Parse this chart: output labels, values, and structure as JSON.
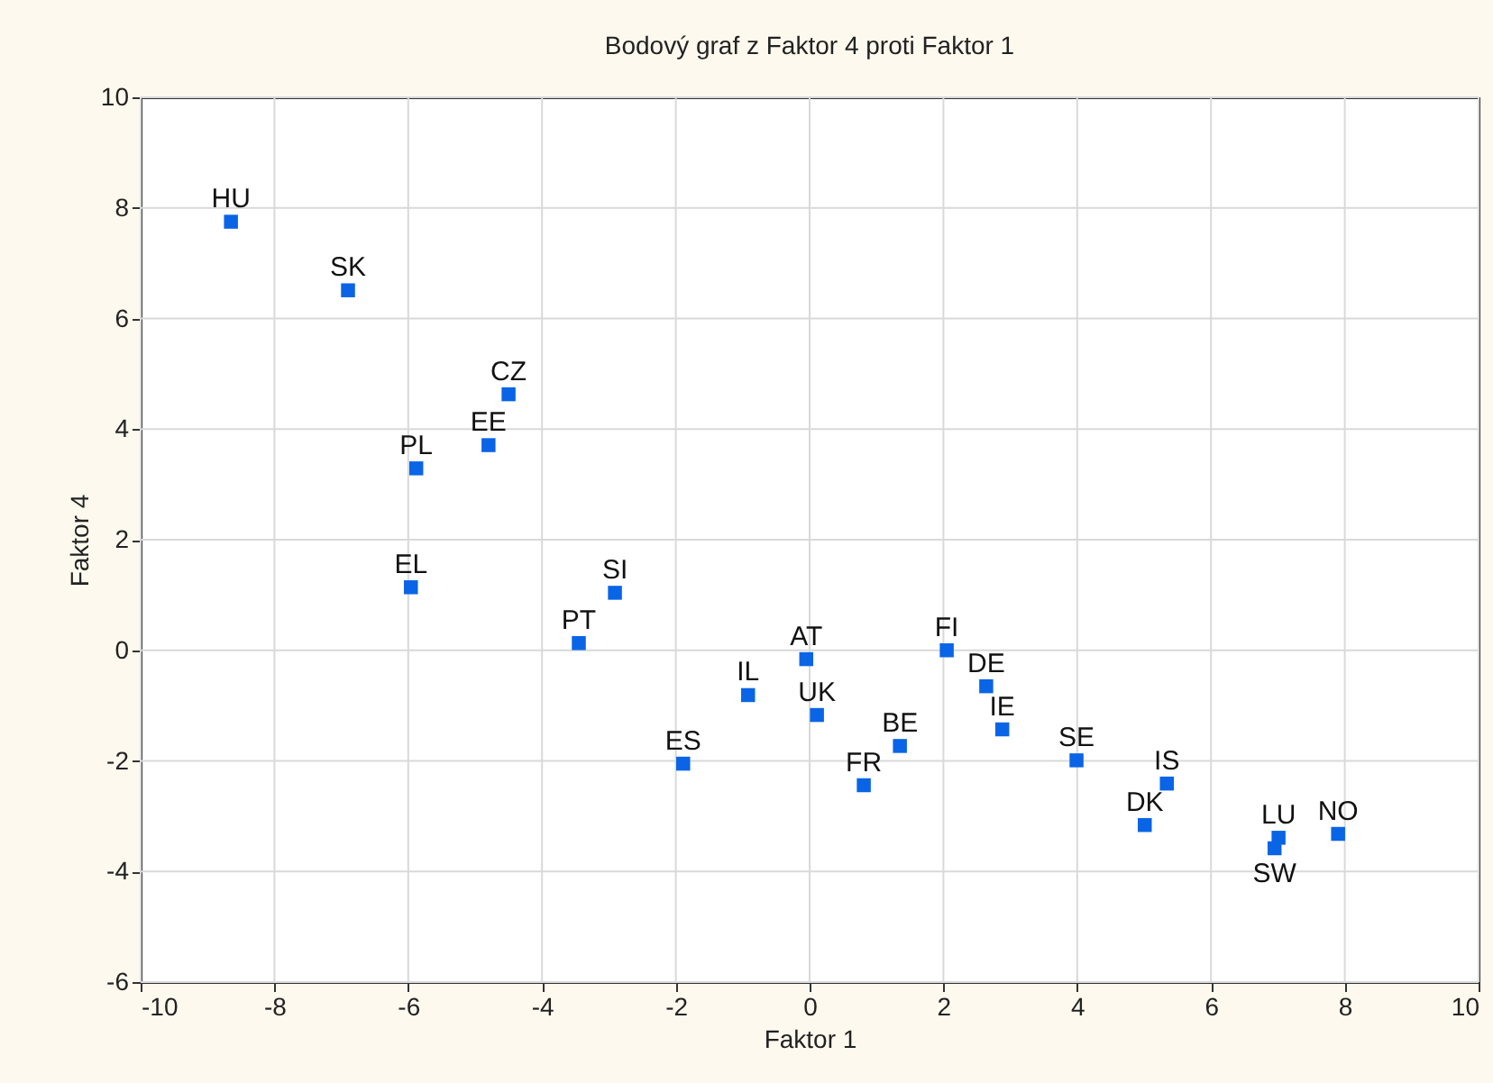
{
  "chart_data": {
    "type": "scatter",
    "title": "Bodový graf z Faktor 4 proti Faktor 1",
    "xlabel": "Faktor 1",
    "ylabel": "Faktor 4",
    "x": [
      -8.65,
      -6.9,
      -4.5,
      -4.8,
      -5.88,
      -5.96,
      -2.91,
      -3.45,
      -0.92,
      -0.05,
      0.11,
      -1.89,
      0.81,
      1.35,
      2.05,
      2.64,
      2.88,
      3.99,
      5.34,
      5.01,
      7.01,
      6.95,
      7.9
    ],
    "series": [
      {
        "color": "#0a64e6",
        "values": [
          7.75,
          6.51,
          4.63,
          3.71,
          3.29,
          1.14,
          1.04,
          0.13,
          -0.81,
          -0.16,
          -1.17,
          -2.05,
          -2.44,
          -1.73,
          0.0,
          -0.65,
          -1.43,
          -1.99,
          -2.41,
          -3.16,
          -3.39,
          -3.58,
          -3.32
        ]
      }
    ],
    "annotations": [
      {
        "text": "HU",
        "x": -8.65,
        "y": 7.75
      },
      {
        "text": "SK",
        "x": -6.9,
        "y": 6.51
      },
      {
        "text": "CZ",
        "x": -4.5,
        "y": 4.63
      },
      {
        "text": "EE",
        "x": -4.8,
        "y": 3.71
      },
      {
        "text": "PL",
        "x": -5.88,
        "y": 3.29
      },
      {
        "text": "EL",
        "x": -5.96,
        "y": 1.14
      },
      {
        "text": "SI",
        "x": -2.91,
        "y": 1.04
      },
      {
        "text": "PT",
        "x": -3.45,
        "y": 0.13
      },
      {
        "text": "IL",
        "x": -0.92,
        "y": -0.81
      },
      {
        "text": "AT",
        "x": -0.05,
        "y": -0.16
      },
      {
        "text": "UK",
        "x": 0.11,
        "y": -1.17
      },
      {
        "text": "ES",
        "x": -1.89,
        "y": -2.05
      },
      {
        "text": "FR",
        "x": 0.81,
        "y": -2.44
      },
      {
        "text": "BE",
        "x": 1.35,
        "y": -1.73
      },
      {
        "text": "FI",
        "x": 2.05,
        "y": 0.0
      },
      {
        "text": "DE",
        "x": 2.64,
        "y": -0.65
      },
      {
        "text": "IE",
        "x": 2.88,
        "y": -1.43
      },
      {
        "text": "SE",
        "x": 3.99,
        "y": -1.99
      },
      {
        "text": "IS",
        "x": 5.34,
        "y": -2.41
      },
      {
        "text": "DK",
        "x": 5.01,
        "y": -3.16
      },
      {
        "text": "LU",
        "x": 7.01,
        "y": -3.39
      },
      {
        "text": "SW",
        "x": 6.95,
        "y": -3.58
      },
      {
        "text": "NO",
        "x": 7.9,
        "y": -3.32
      }
    ],
    "xlim": [
      -10,
      10
    ],
    "xticks": [
      -10,
      -8,
      -6,
      -4,
      -2,
      0,
      2,
      4,
      6,
      8,
      10
    ],
    "ylim": [
      -6,
      10
    ],
    "yticks": [
      -6,
      -4,
      -2,
      0,
      2,
      4,
      6,
      8,
      10
    ],
    "grid": true,
    "marker": "square"
  }
}
